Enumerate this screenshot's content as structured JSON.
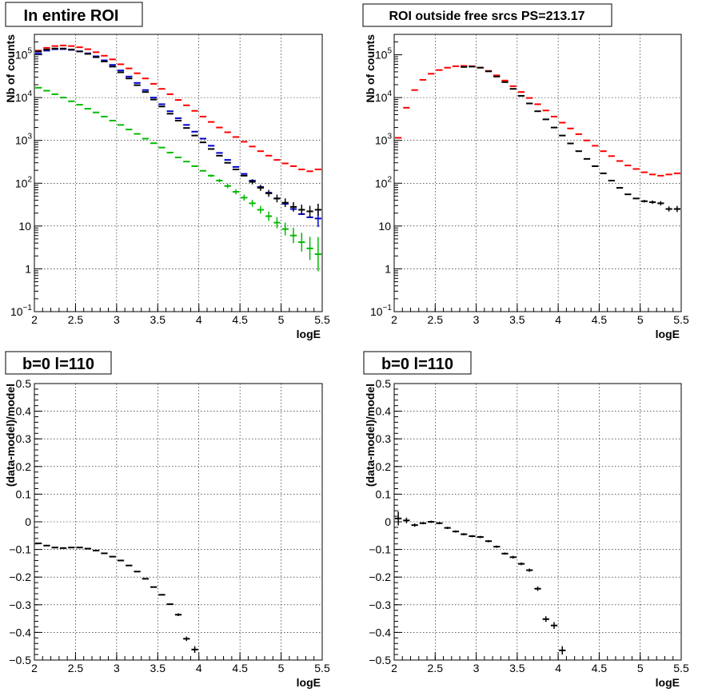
{
  "colors": {
    "black": "#000000",
    "red": "#ff0000",
    "blue": "#0000cc",
    "green": "#00bb00"
  },
  "chart_data": [
    {
      "type": "scatter",
      "title": "In entire ROI",
      "xlabel": "logE",
      "ylabel": "Nb of counts",
      "log_y": true,
      "xlim": [
        2,
        5.5
      ],
      "ylim": [
        0.1,
        300000
      ],
      "grid": true,
      "x_ticks": [
        "2",
        "2.5",
        "3",
        "3.5",
        "4",
        "4.5",
        "5",
        "5.5"
      ],
      "y_ticks": [
        {
          "v": 0.1,
          "base": "10",
          "sup": "−1"
        },
        {
          "v": 1,
          "base": "1",
          "sup": ""
        },
        {
          "v": 10,
          "base": "10",
          "sup": ""
        },
        {
          "v": 100,
          "base": "10",
          "sup": "2"
        },
        {
          "v": 1000,
          "base": "10",
          "sup": "3"
        },
        {
          "v": 10000,
          "base": "10",
          "sup": "4"
        },
        {
          "v": 100000,
          "base": "10",
          "sup": "5"
        }
      ],
      "series": [
        {
          "color": "red",
          "x": [
            2.05,
            2.15,
            2.25,
            2.35,
            2.45,
            2.55,
            2.65,
            2.75,
            2.85,
            2.95,
            3.05,
            3.15,
            3.25,
            3.35,
            3.45,
            3.55,
            3.65,
            3.75,
            3.85,
            3.95,
            4.05,
            4.15,
            4.25,
            4.35,
            4.45,
            4.55,
            4.65,
            4.75,
            4.85,
            4.95,
            5.05,
            5.15,
            5.25,
            5.35,
            5.45
          ],
          "y": [
            125000,
            145000,
            160000,
            165000,
            160000,
            150000,
            135000,
            115000,
            95000,
            78000,
            60000,
            48000,
            37000,
            28000,
            21000,
            16000,
            12000,
            8800,
            6600,
            4900,
            3600,
            2700,
            2000,
            1550,
            1200,
            930,
            720,
            560,
            440,
            350,
            290,
            250,
            210,
            190,
            210
          ],
          "err": [
            0,
            0,
            0,
            0,
            0,
            0,
            0,
            0,
            0,
            0,
            0,
            0,
            0,
            0,
            0,
            0,
            0,
            0,
            0,
            0,
            0,
            0,
            0,
            0,
            0,
            0,
            0,
            0,
            0,
            0,
            0,
            0,
            0,
            0,
            0
          ]
        },
        {
          "color": "blue",
          "x": [
            2.05,
            2.15,
            2.25,
            2.35,
            2.45,
            2.55,
            2.65,
            2.75,
            2.85,
            2.95,
            3.05,
            3.15,
            3.25,
            3.35,
            3.45,
            3.55,
            3.65,
            3.75,
            3.85,
            3.95,
            4.05,
            4.15,
            4.25,
            4.35,
            4.45,
            4.55,
            4.65,
            4.75,
            4.85,
            4.95,
            5.05,
            5.15,
            5.25,
            5.35,
            5.45
          ],
          "y": [
            108000,
            125000,
            135000,
            136000,
            130000,
            120000,
            108000,
            92000,
            74000,
            58000,
            43000,
            31000,
            22000,
            15000,
            10000,
            7000,
            4800,
            3300,
            2300,
            1600,
            1100,
            750,
            510,
            350,
            240,
            165,
            115,
            82,
            60,
            44,
            33,
            25,
            19,
            16,
            15
          ],
          "err": [
            0,
            0,
            0,
            0,
            0,
            0,
            0,
            0,
            0,
            0,
            0,
            0,
            0,
            0,
            0,
            0,
            0,
            0,
            0,
            0,
            0,
            0,
            0,
            0,
            0,
            0,
            0,
            0,
            0,
            0,
            0,
            0,
            0,
            0,
            0.2
          ]
        },
        {
          "color": "black",
          "x": [
            2.05,
            2.15,
            2.25,
            2.35,
            2.45,
            2.55,
            2.65,
            2.75,
            2.85,
            2.95,
            3.05,
            3.15,
            3.25,
            3.35,
            3.45,
            3.55,
            3.65,
            3.75,
            3.85,
            3.95,
            4.05,
            4.15,
            4.25,
            4.35,
            4.45,
            4.55,
            4.65,
            4.75,
            4.85,
            4.95,
            5.05,
            5.15,
            5.25,
            5.35,
            5.45
          ],
          "y": [
            120000,
            132000,
            140000,
            140000,
            133000,
            120000,
            105000,
            88000,
            70000,
            53000,
            39000,
            28000,
            19500,
            13500,
            9000,
            6200,
            4200,
            2900,
            1950,
            1300,
            900,
            630,
            440,
            300,
            210,
            150,
            108,
            78,
            58,
            44,
            35,
            28,
            24,
            22,
            24
          ],
          "err": [
            0,
            0,
            0,
            0,
            0,
            0,
            0,
            0,
            0,
            0,
            0,
            0,
            0,
            0,
            0,
            0,
            0,
            0,
            0,
            0,
            0,
            0,
            0,
            0,
            0,
            0,
            0.06,
            0.07,
            0.08,
            0.09,
            0.1,
            0.11,
            0.12,
            0.13,
            0.14
          ]
        },
        {
          "color": "green",
          "x": [
            2.05,
            2.15,
            2.25,
            2.35,
            2.45,
            2.55,
            2.65,
            2.75,
            2.85,
            2.95,
            3.05,
            3.15,
            3.25,
            3.35,
            3.45,
            3.55,
            3.65,
            3.75,
            3.85,
            3.95,
            4.05,
            4.15,
            4.25,
            4.35,
            4.45,
            4.55,
            4.65,
            4.75,
            4.85,
            4.95,
            5.05,
            5.15,
            5.25,
            5.35,
            5.45
          ],
          "y": [
            17000,
            14500,
            12000,
            10000,
            8200,
            6800,
            5500,
            4500,
            3600,
            2900,
            2300,
            1800,
            1420,
            1100,
            860,
            680,
            520,
            400,
            320,
            250,
            195,
            150,
            115,
            86,
            63,
            46,
            34,
            24,
            17,
            12,
            8.5,
            6,
            4.2,
            3,
            2.2
          ],
          "err": [
            0,
            0,
            0,
            0,
            0,
            0,
            0,
            0,
            0,
            0,
            0,
            0,
            0,
            0,
            0,
            0,
            0,
            0,
            0,
            0,
            0,
            0.03,
            0.04,
            0.05,
            0.06,
            0.07,
            0.08,
            0.09,
            0.11,
            0.13,
            0.15,
            0.18,
            0.22,
            0.27,
            0.4
          ]
        }
      ]
    },
    {
      "type": "scatter",
      "title": "ROI outside free srcs PS=213.17",
      "xlabel": "logE",
      "ylabel": "Nb of counts",
      "log_y": true,
      "xlim": [
        2,
        5.5
      ],
      "ylim": [
        0.1,
        300000
      ],
      "grid": true,
      "x_ticks": [
        "2",
        "2.5",
        "3",
        "3.5",
        "4",
        "4.5",
        "5",
        "5.5"
      ],
      "y_ticks": [
        {
          "v": 0.1,
          "base": "10",
          "sup": "−1"
        },
        {
          "v": 1,
          "base": "1",
          "sup": ""
        },
        {
          "v": 10,
          "base": "10",
          "sup": ""
        },
        {
          "v": 100,
          "base": "10",
          "sup": "2"
        },
        {
          "v": 1000,
          "base": "10",
          "sup": "3"
        },
        {
          "v": 10000,
          "base": "10",
          "sup": "4"
        },
        {
          "v": 100000,
          "base": "10",
          "sup": "5"
        }
      ],
      "series": [
        {
          "color": "red",
          "x": [
            2.05,
            2.15,
            2.25,
            2.35,
            2.45,
            2.55,
            2.65,
            2.75,
            2.85,
            2.95,
            3.05,
            3.15,
            3.25,
            3.35,
            3.45,
            3.55,
            3.65,
            3.75,
            3.85,
            3.95,
            4.05,
            4.15,
            4.25,
            4.35,
            4.45,
            4.55,
            4.65,
            4.75,
            4.85,
            4.95,
            5.05,
            5.15,
            5.25,
            5.35,
            5.45
          ],
          "y": [
            1150,
            5800,
            15000,
            26000,
            36000,
            44000,
            50000,
            54000,
            55000,
            54000,
            50000,
            42000,
            33000,
            25000,
            18500,
            13500,
            9800,
            7000,
            5000,
            3600,
            2600,
            1900,
            1400,
            1000,
            750,
            560,
            430,
            330,
            260,
            215,
            180,
            160,
            150,
            160,
            170
          ],
          "err": [
            0,
            0,
            0,
            0,
            0,
            0,
            0,
            0,
            0,
            0,
            0,
            0,
            0,
            0,
            0,
            0,
            0,
            0,
            0,
            0,
            0,
            0,
            0,
            0,
            0,
            0,
            0,
            0,
            0,
            0,
            0,
            0,
            0,
            0,
            0
          ]
        },
        {
          "color": "black",
          "x": [
            2.85,
            2.95,
            3.05,
            3.15,
            3.25,
            3.35,
            3.45,
            3.55,
            3.65,
            3.75,
            3.85,
            3.95,
            4.05,
            4.15,
            4.25,
            4.35,
            4.45,
            4.55,
            4.65,
            4.75,
            4.85,
            4.95,
            5.05,
            5.15,
            5.25,
            5.35,
            5.45
          ],
          "y": [
            52000,
            53000,
            50000,
            41000,
            31000,
            23000,
            16000,
            11000,
            7300,
            4800,
            3100,
            2000,
            1300,
            850,
            560,
            370,
            250,
            170,
            115,
            78,
            55,
            44,
            38,
            36,
            34,
            25,
            25
          ],
          "err": [
            0,
            0,
            0,
            0,
            0,
            0,
            0,
            0,
            0,
            0,
            0,
            0,
            0,
            0,
            0,
            0,
            0,
            0,
            0,
            0,
            0,
            0,
            0.03,
            0.04,
            0.05,
            0.06,
            0.07
          ]
        }
      ]
    },
    {
      "type": "scatter",
      "title": "b=0 l=110",
      "xlabel": "logE",
      "ylabel": "(data-model)/model",
      "log_y": false,
      "xlim": [
        2,
        5.5
      ],
      "ylim": [
        -0.5,
        0.5
      ],
      "grid": true,
      "x_ticks": [
        "2",
        "2.5",
        "3",
        "3.5",
        "4",
        "4.5",
        "5",
        "5.5"
      ],
      "y_ticks": [
        {
          "v": -0.5,
          "base": "−0.5",
          "sup": ""
        },
        {
          "v": -0.4,
          "base": "−0.4",
          "sup": ""
        },
        {
          "v": -0.3,
          "base": "−0.3",
          "sup": ""
        },
        {
          "v": -0.2,
          "base": "−0.2",
          "sup": ""
        },
        {
          "v": -0.1,
          "base": "−0.1",
          "sup": ""
        },
        {
          "v": 0,
          "base": "0",
          "sup": ""
        },
        {
          "v": 0.1,
          "base": "0.1",
          "sup": ""
        },
        {
          "v": 0.2,
          "base": "0.2",
          "sup": ""
        },
        {
          "v": 0.3,
          "base": "0.3",
          "sup": ""
        },
        {
          "v": 0.4,
          "base": "0.4",
          "sup": ""
        },
        {
          "v": 0.5,
          "base": "0.5",
          "sup": ""
        }
      ],
      "series": [
        {
          "color": "black",
          "x": [
            2.05,
            2.15,
            2.25,
            2.35,
            2.45,
            2.55,
            2.65,
            2.75,
            2.85,
            2.95,
            3.05,
            3.15,
            3.25,
            3.35,
            3.45,
            3.55,
            3.65,
            3.75,
            3.85,
            3.95
          ],
          "y": [
            -0.078,
            -0.086,
            -0.093,
            -0.095,
            -0.093,
            -0.093,
            -0.097,
            -0.104,
            -0.114,
            -0.126,
            -0.14,
            -0.158,
            -0.18,
            -0.206,
            -0.236,
            -0.264,
            -0.298,
            -0.336,
            -0.423,
            -0.462
          ],
          "err": [
            0,
            0,
            0,
            0,
            0,
            0,
            0,
            0,
            0,
            0,
            0,
            0,
            0,
            0,
            0,
            0,
            0,
            0.005,
            0.008,
            0.012
          ]
        }
      ]
    },
    {
      "type": "scatter",
      "title": "b=0 l=110",
      "xlabel": "logE",
      "ylabel": "(data-model)/model",
      "log_y": false,
      "xlim": [
        2,
        5.5
      ],
      "ylim": [
        -0.5,
        0.5
      ],
      "grid": true,
      "x_ticks": [
        "2",
        "2.5",
        "3",
        "3.5",
        "4",
        "4.5",
        "5",
        "5.5"
      ],
      "y_ticks": [
        {
          "v": -0.5,
          "base": "−0.5",
          "sup": ""
        },
        {
          "v": -0.4,
          "base": "−0.4",
          "sup": ""
        },
        {
          "v": -0.3,
          "base": "−0.3",
          "sup": ""
        },
        {
          "v": -0.2,
          "base": "−0.2",
          "sup": ""
        },
        {
          "v": -0.1,
          "base": "−0.1",
          "sup": ""
        },
        {
          "v": 0,
          "base": "0",
          "sup": ""
        },
        {
          "v": 0.1,
          "base": "0.1",
          "sup": ""
        },
        {
          "v": 0.2,
          "base": "0.2",
          "sup": ""
        },
        {
          "v": 0.3,
          "base": "0.3",
          "sup": ""
        },
        {
          "v": 0.4,
          "base": "0.4",
          "sup": ""
        },
        {
          "v": 0.5,
          "base": "0.5",
          "sup": ""
        }
      ],
      "series": [
        {
          "color": "black",
          "x": [
            2.05,
            2.15,
            2.25,
            2.35,
            2.45,
            2.55,
            2.65,
            2.75,
            2.85,
            2.95,
            3.05,
            3.15,
            3.25,
            3.35,
            3.45,
            3.55,
            3.65,
            3.75,
            3.85,
            3.95,
            4.05
          ],
          "y": [
            0.012,
            0.005,
            -0.012,
            -0.005,
            0.0,
            -0.005,
            -0.022,
            -0.035,
            -0.045,
            -0.052,
            -0.055,
            -0.07,
            -0.09,
            -0.115,
            -0.128,
            -0.152,
            -0.175,
            -0.242,
            -0.352,
            -0.375,
            -0.465
          ],
          "err": [
            0.025,
            0.01,
            0.006,
            0.004,
            0.004,
            0.004,
            0.004,
            0.004,
            0.004,
            0.004,
            0.004,
            0.004,
            0.004,
            0.004,
            0.005,
            0.005,
            0.006,
            0.008,
            0.01,
            0.012,
            0.015
          ]
        }
      ]
    }
  ]
}
